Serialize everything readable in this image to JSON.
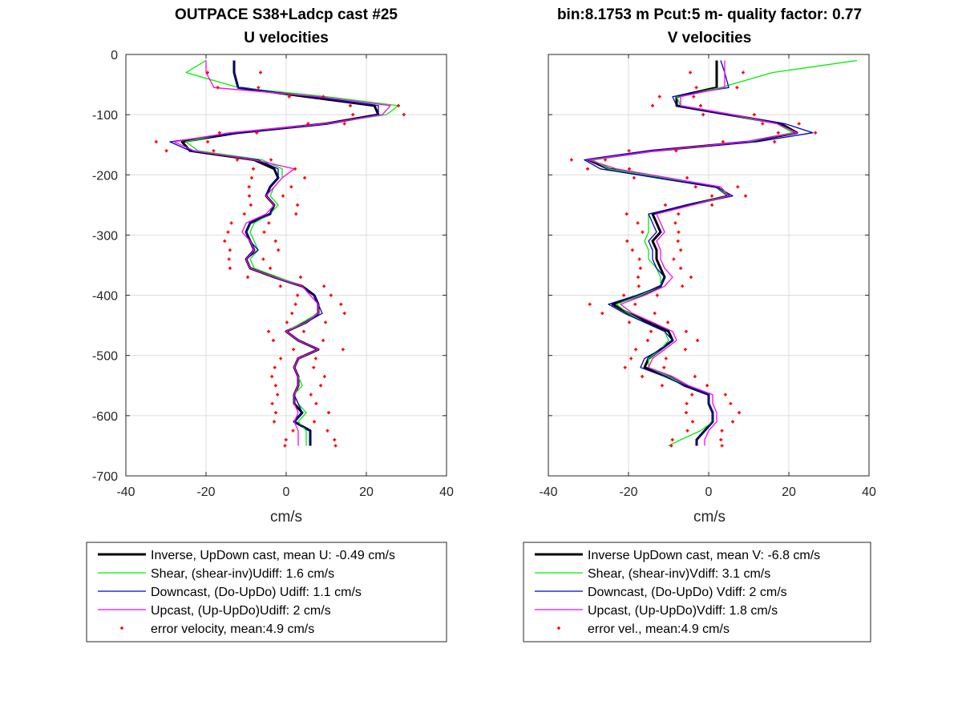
{
  "chart_data": [
    {
      "type": "line",
      "title": [
        "OUTPACE S38+Ladcp cast #25",
        "U velocities"
      ],
      "xlabel": "cm/s",
      "ylabel": "",
      "xlim": [
        -40,
        40
      ],
      "ylim": [
        -700,
        0
      ],
      "xticks": [
        -40,
        -20,
        0,
        20,
        40
      ],
      "yticks": [
        0,
        -100,
        -200,
        -300,
        -400,
        -500,
        -600,
        -700
      ],
      "grid": true,
      "legend_position": "below",
      "depth": [
        -10,
        -30,
        -55,
        -70,
        -85,
        -100,
        -115,
        -130,
        -145,
        -160,
        -175,
        -190,
        -205,
        -220,
        -235,
        -250,
        -265,
        -280,
        -295,
        -310,
        -325,
        -340,
        -355,
        -370,
        -385,
        -400,
        -415,
        -430,
        -445,
        -460,
        -475,
        -490,
        -505,
        -520,
        -535,
        -550,
        -565,
        -580,
        -595,
        -610,
        -625,
        -640,
        -650
      ],
      "series": [
        {
          "name": "Inverse, UpDown cast, mean U:  -0.49 cm/s",
          "color": "#000000",
          "width": 3,
          "style": "line",
          "values": [
            -13,
            -13,
            -12,
            5,
            22,
            23,
            10,
            -12,
            -26,
            -24,
            -8,
            -3,
            -2,
            -4,
            -5,
            -3,
            -4,
            -9,
            -10,
            -9,
            -8,
            -10,
            -9,
            -3,
            4,
            7,
            8,
            8,
            5,
            0,
            3,
            8,
            3,
            2,
            3,
            3,
            2,
            2,
            4,
            2,
            6,
            6,
            6
          ]
        },
        {
          "name": "Shear, (shear-inv)Udiff:  1.6 cm/s",
          "color": "#00ee00",
          "width": 1.3,
          "style": "line",
          "values": [
            -20,
            -25,
            -12,
            10,
            28,
            25,
            10,
            -14,
            -25,
            -22,
            -6,
            -1,
            -1,
            -3,
            -4,
            -2,
            -4,
            -8,
            -9,
            -8,
            -7,
            -9,
            -8,
            -2,
            4,
            6,
            8,
            8,
            4,
            0,
            3,
            8,
            3,
            2,
            3,
            4,
            2,
            3,
            5,
            3,
            5,
            5,
            5
          ]
        },
        {
          "name": "Downcast, (Do-UpDo) Udiff:  1.1 cm/s",
          "color": "#0000cc",
          "width": 1.3,
          "style": "line",
          "values": [
            -13,
            -13,
            -12,
            6,
            23,
            23,
            11,
            -12,
            -29,
            -24,
            -7,
            -2,
            -2,
            -4,
            -5,
            -3,
            -4,
            -9,
            -10,
            -9,
            -7,
            -10,
            -9,
            -3,
            4,
            7,
            8,
            9,
            5,
            0,
            3,
            8,
            3,
            2,
            3,
            3,
            2,
            3,
            4,
            2,
            6,
            6,
            6
          ]
        },
        {
          "name": "Upcast, (Up-UpDo)Udiff:  2 cm/s",
          "color": "#ff00ff",
          "width": 1.3,
          "style": "line",
          "values": [
            -20,
            -20,
            -18,
            8,
            26,
            24,
            10,
            -14,
            -28,
            -23,
            -8,
            2,
            -1,
            -3,
            -5,
            -3,
            -5,
            -10,
            -11,
            -9,
            -8,
            -10,
            -9,
            -3,
            4,
            6,
            8,
            8,
            5,
            0,
            3,
            8,
            3,
            2,
            3,
            3,
            2,
            2,
            3,
            2,
            3,
            3,
            3
          ]
        },
        {
          "name": "error velocity, mean:4.9 cm/s",
          "color": "#ff0000",
          "width": 1,
          "style": "marker",
          "values": [],
          "note_offsets": 4.9
        }
      ]
    },
    {
      "type": "line",
      "title": [
        "bin:8.1753 m  Pcut:5 m- quality factor:  0.77",
        "V velocities"
      ],
      "xlabel": "cm/s",
      "ylabel": "",
      "xlim": [
        -40,
        40
      ],
      "ylim": [
        -700,
        0
      ],
      "xticks": [
        -40,
        -20,
        0,
        20,
        40
      ],
      "yticks": [
        0,
        -100,
        -200,
        -300,
        -400,
        -500,
        -600,
        -700
      ],
      "grid": true,
      "legend_position": "below",
      "depth": [
        -10,
        -30,
        -55,
        -70,
        -85,
        -100,
        -115,
        -130,
        -145,
        -160,
        -175,
        -190,
        -205,
        -220,
        -235,
        -250,
        -265,
        -280,
        -295,
        -310,
        -325,
        -340,
        -355,
        -370,
        -385,
        -400,
        -415,
        -430,
        -445,
        -460,
        -475,
        -490,
        -505,
        -520,
        -535,
        -550,
        -565,
        -580,
        -595,
        -610,
        -625,
        -640,
        -650
      ],
      "series": [
        {
          "name": "Inverse UpDown cast, mean V:  -6.8 cm/s",
          "color": "#000000",
          "width": 3,
          "style": "line",
          "values": [
            2,
            2,
            2,
            -8,
            -8,
            5,
            18,
            22,
            10,
            -14,
            -30,
            -25,
            -12,
            2,
            5,
            -5,
            -14,
            -13,
            -12,
            -14,
            -13,
            -13,
            -12,
            -11,
            -12,
            -17,
            -24,
            -20,
            -15,
            -10,
            -9,
            -12,
            -15,
            -16,
            -10,
            -6,
            0,
            0,
            1,
            1,
            -1,
            -3,
            -3
          ]
        },
        {
          "name": "Shear, (shear-inv)Vdiff:  3.1 cm/s",
          "color": "#00ee00",
          "width": 1.3,
          "style": "line",
          "values": [
            37,
            16,
            3,
            -8,
            -7,
            5,
            17,
            21,
            10,
            -14,
            -29,
            -25,
            -11,
            2,
            5,
            -5,
            -15,
            -15,
            -15,
            -16,
            -15,
            -15,
            -13,
            -12,
            -12,
            -17,
            -23,
            -20,
            -16,
            -11,
            -10,
            -12,
            -15,
            -15,
            -10,
            -6,
            0,
            0,
            1,
            1,
            -2,
            -7,
            -10
          ]
        },
        {
          "name": "Downcast, (Do-UpDo) Vdiff:  2 cm/s",
          "color": "#0000cc",
          "width": 1.3,
          "style": "line",
          "values": [
            3,
            4,
            5,
            -9,
            -8,
            5,
            19,
            26,
            12,
            -15,
            -31,
            -27,
            -13,
            2,
            6,
            -5,
            -15,
            -14,
            -13,
            -15,
            -14,
            -14,
            -13,
            -11,
            -12,
            -18,
            -25,
            -21,
            -16,
            -11,
            -9,
            -12,
            -16,
            -17,
            -11,
            -6,
            0,
            0,
            1,
            1,
            -1,
            -3,
            -3
          ]
        },
        {
          "name": "Upcast, (Up-UpDo)Vdiff:  1.8 cm/s",
          "color": "#ff00ff",
          "width": 1.3,
          "style": "line",
          "values": [
            4,
            4,
            4,
            -7,
            -7,
            6,
            17,
            22,
            9,
            -13,
            -30,
            -23,
            -10,
            3,
            5,
            -4,
            -13,
            -12,
            -11,
            -13,
            -12,
            -12,
            -11,
            -9,
            -11,
            -16,
            -22,
            -19,
            -14,
            -9,
            -8,
            -11,
            -14,
            -15,
            -9,
            -5,
            1,
            1,
            2,
            2,
            0,
            -1,
            -1
          ]
        },
        {
          "name": "error vel., mean:4.9 cm/s",
          "color": "#ff0000",
          "width": 1,
          "style": "marker",
          "values": [],
          "note_offsets": 4.9
        }
      ]
    }
  ]
}
